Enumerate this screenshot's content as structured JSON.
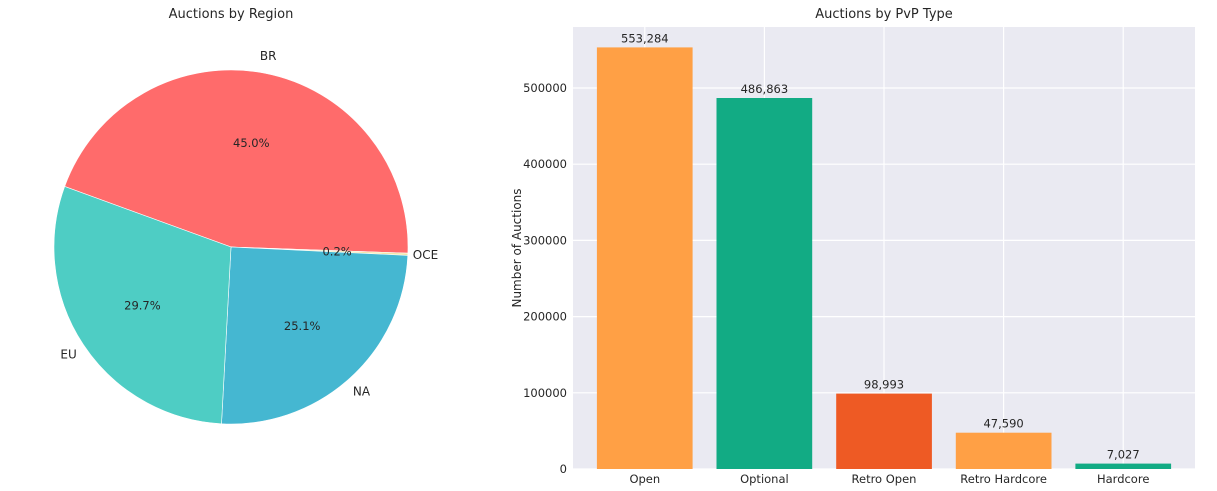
{
  "chart_data": [
    {
      "type": "pie",
      "title": "Auctions by Region",
      "slices": [
        {
          "label": "BR",
          "percent": 45.0,
          "percent_label": "45.0%",
          "color": "#ff6b6b"
        },
        {
          "label": "OCE",
          "percent": 0.2,
          "percent_label": "0.2%",
          "color": "#f0e6a8"
        },
        {
          "label": "NA",
          "percent": 25.1,
          "percent_label": "25.1%",
          "color": "#45b7d1"
        },
        {
          "label": "EU",
          "percent": 29.7,
          "percent_label": "29.7%",
          "color": "#4ecdc4"
        }
      ],
      "start_angle_deg": 160,
      "direction": "clockwise"
    },
    {
      "type": "bar",
      "title": "Auctions by PvP Type",
      "categories": [
        "Open",
        "Optional",
        "Retro Open",
        "Retro Hardcore",
        "Hardcore"
      ],
      "values": [
        553284,
        486863,
        98993,
        47590,
        7027
      ],
      "value_labels": [
        "553,284",
        "486,863",
        "98,993",
        "47,590",
        "7,027"
      ],
      "colors": [
        "#ffa045",
        "#12ab84",
        "#ee5a24",
        "#ffa045",
        "#12ab84"
      ],
      "xlabel": "",
      "ylabel": "Number of Auctions",
      "ylim": [
        0,
        580000
      ],
      "yticks": [
        0,
        100000,
        200000,
        300000,
        400000,
        500000
      ],
      "ytick_labels": [
        "0",
        "100000",
        "200000",
        "300000",
        "400000",
        "500000"
      ],
      "grid": true,
      "background": "#eaeaf2"
    }
  ]
}
